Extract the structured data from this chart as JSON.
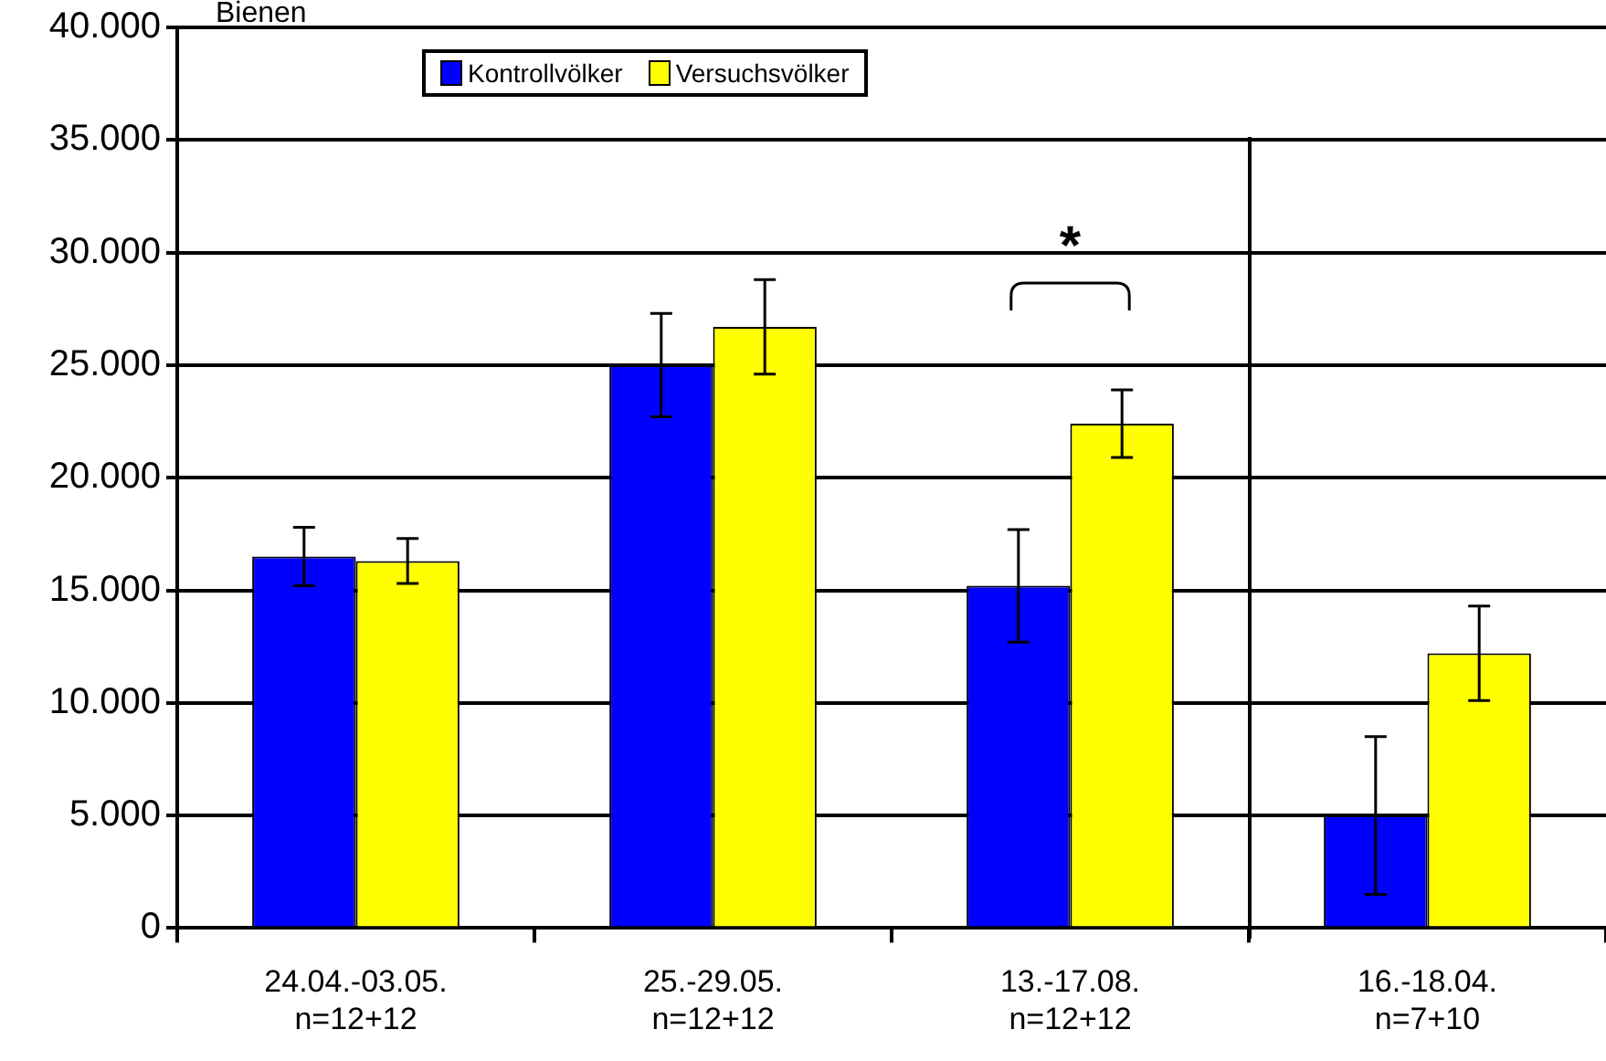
{
  "chart_data": {
    "type": "bar",
    "ylabel": "Bienen",
    "categories": [
      "24.04.-03.05.\nn=12+12",
      "25.-29.05.\nn=12+12",
      "13.-17.08.\nn=12+12",
      "16.-18.04.\nn=7+10"
    ],
    "series": [
      {
        "name": "Kontrollvölker",
        "color": "#0000ff",
        "values": [
          16500,
          25000,
          15200,
          5000
        ],
        "errors": [
          1300,
          2300,
          2500,
          3500
        ]
      },
      {
        "name": "Versuchsvölker",
        "color": "#ffff00",
        "values": [
          16300,
          26700,
          22400,
          12200
        ],
        "errors": [
          1000,
          2100,
          1500,
          2100
        ]
      }
    ],
    "ylim": [
      0,
      40000
    ],
    "yticks": [
      {
        "value": 0,
        "label": "0"
      },
      {
        "value": 5000,
        "label": "5.000"
      },
      {
        "value": 10000,
        "label": "10.000"
      },
      {
        "value": 15000,
        "label": "15.000"
      },
      {
        "value": 20000,
        "label": "20.000"
      },
      {
        "value": 25000,
        "label": "25.000"
      },
      {
        "value": 30000,
        "label": "30.000"
      },
      {
        "value": 35000,
        "label": "35.000"
      },
      {
        "value": 40000,
        "label": "40.000"
      }
    ],
    "grid": "y",
    "legend": "top",
    "annotations": [
      "*"
    ]
  }
}
